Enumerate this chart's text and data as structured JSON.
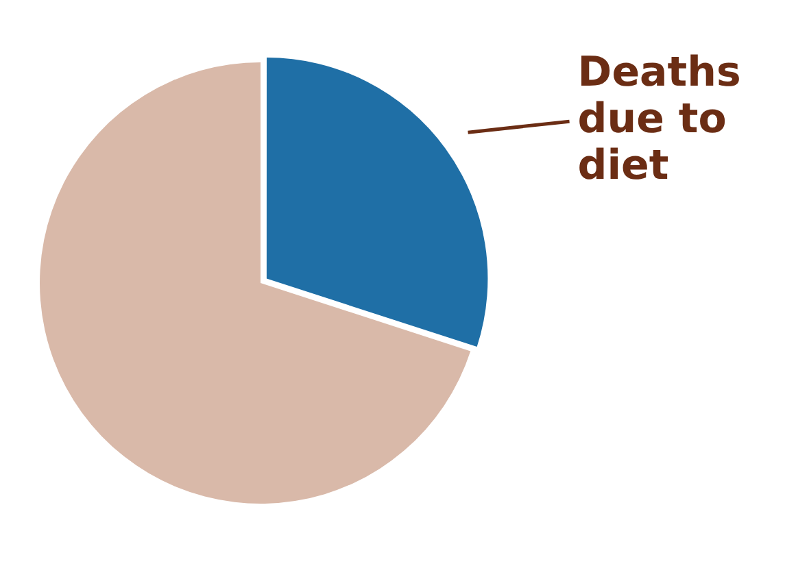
{
  "chart_data": {
    "type": "pie",
    "categories": [
      "Deaths due to diet",
      null
    ],
    "values": [
      30,
      70
    ],
    "colors": [
      "#1f6fa6",
      "#d9b9a9"
    ],
    "legend": false
  }
}
